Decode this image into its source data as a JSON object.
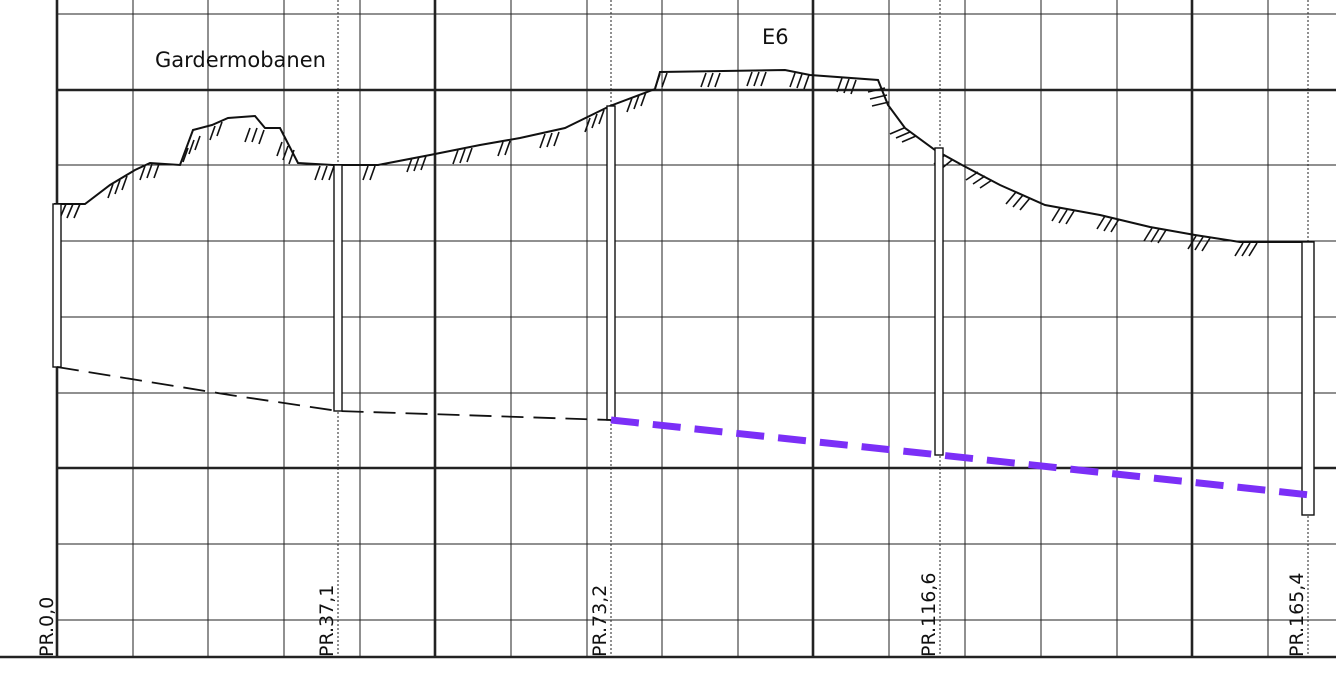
{
  "labels": {
    "railway": "Gardermobanen",
    "road": "E6"
  },
  "boreholes": [
    {
      "id": "PR.0,0",
      "chainage": 0.0
    },
    {
      "id": "PR.37,1",
      "chainage": 37.1
    },
    {
      "id": "PR.73,2",
      "chainage": 73.2
    },
    {
      "id": "PR.116,6",
      "chainage": 116.6
    },
    {
      "id": "PR.165,4",
      "chainage": 165.4
    }
  ],
  "colors": {
    "line": "#111111",
    "highlight": "#7b2ff7"
  }
}
